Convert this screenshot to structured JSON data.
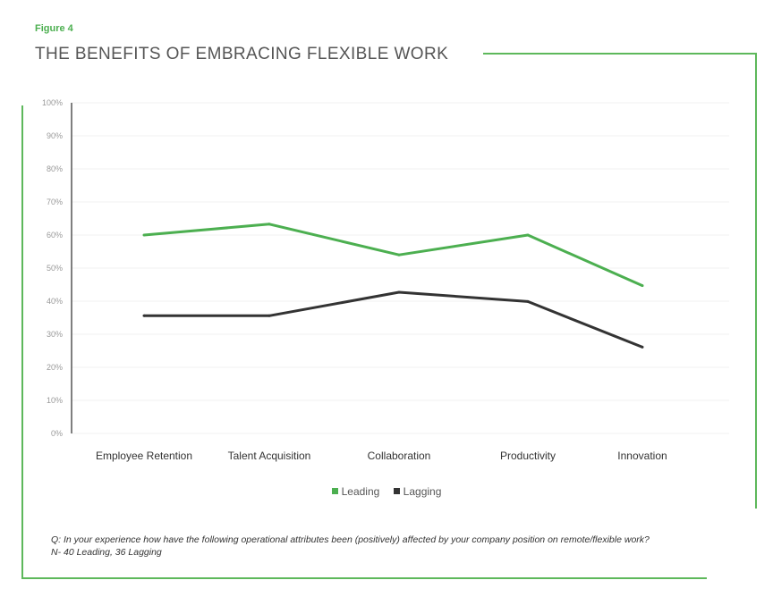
{
  "figure_label": "Figure 4",
  "title": "THE BENEFITS OF EMBRACING FLEXIBLE WORK",
  "colors": {
    "accent": "#5db85b",
    "leading": "#4caf50",
    "lagging": "#333333"
  },
  "chart_data": {
    "type": "line",
    "title": "THE BENEFITS OF EMBRACING FLEXIBLE WORK",
    "categories": [
      "Employee Retention",
      "Talent Acquisition",
      "Collaboration",
      "Productivity",
      "Innovation"
    ],
    "series": [
      {
        "name": "Leading",
        "color": "#4caf50",
        "values": [
          60,
          63.3,
          54,
          60,
          44.7
        ]
      },
      {
        "name": "Lagging",
        "color": "#333333",
        "values": [
          35.6,
          35.6,
          42.7,
          39.9,
          26.1
        ]
      }
    ],
    "yticks": [
      "0%",
      "10%",
      "20%",
      "30%",
      "40%",
      "50%",
      "60%",
      "70%",
      "80%",
      "90%",
      "100%"
    ],
    "ylim": [
      0,
      100
    ],
    "xlabel": "",
    "ylabel": "",
    "grid": true,
    "legend": "bottom-center"
  },
  "legend": [
    {
      "label": "Leading",
      "color": "#4caf50"
    },
    {
      "label": "Lagging",
      "color": "#333333"
    }
  ],
  "footnote": {
    "line1": "Q: In your experience how have the following operational attributes been (positively) affected by your company position on remote/flexible work?",
    "line2": "N- 40 Leading, 36 Lagging"
  }
}
